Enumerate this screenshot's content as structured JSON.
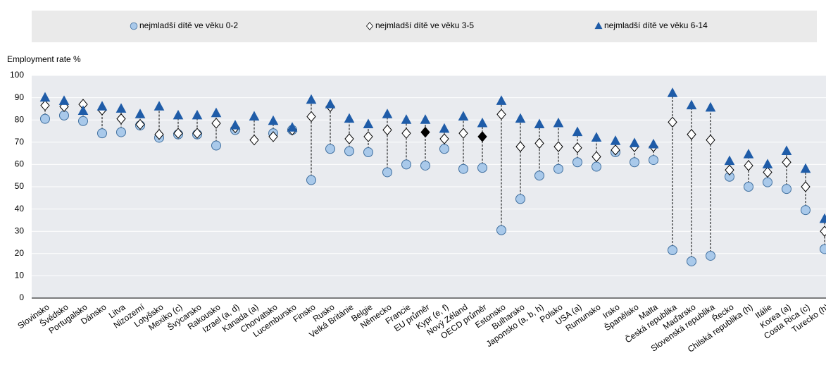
{
  "chart_data": {
    "type": "dot",
    "y_label": "Employment rate %",
    "categories": [
      "Slovinsko",
      "Švédsko",
      "Portugalsko",
      "Dánsko",
      "Litva",
      "Nizozemí",
      "Lotyšsko",
      "Mexiko (c)",
      "Švýcarsko",
      "Rakousko",
      "Izrael (a, d)",
      "Kanada (a)",
      "Chorvatsko",
      "Lucembursko",
      "Finsko",
      "Rusko",
      "Velká Británie",
      "Belgie",
      "Německo",
      "Francie",
      "EU průměr",
      "Kypr (e, f)",
      "Nový Zéland",
      "OECD průměr",
      "Estonsko",
      "Bulharsko",
      "Japonsko (a, b, h)",
      "Polsko",
      "USA (a)",
      "Rumunsko",
      "Irsko",
      "Španělsko",
      "Malta",
      "Česká republika",
      "Maďarsko",
      "Slovenská republika",
      "Řecko",
      "Chilská republika (h)",
      "Itálie",
      "Korea (a)",
      "Costa Rica (c)",
      "Turecko (h)"
    ],
    "series": [
      {
        "name": "nejmladší dítě ve věku 0-2",
        "marker": "circle",
        "color": "#a9c9ea",
        "stroke": "#3f6f9f",
        "values": [
          80.5,
          82,
          79.5,
          74,
          74.5,
          77.5,
          72,
          73.5,
          73.5,
          68.5,
          75.5,
          null,
          74,
          75.5,
          53,
          67,
          66,
          65.5,
          56.5,
          60,
          59.5,
          67,
          58,
          58.5,
          30.5,
          44.5,
          55,
          58,
          61,
          59,
          65.5,
          61,
          62,
          21.5,
          16.5,
          19,
          54.5,
          50,
          52,
          49,
          39.5,
          22
        ]
      },
      {
        "name": "nejmladší dítě ve věku 3-5",
        "marker": "diamond",
        "color": "#ffffff",
        "stroke": "#000000",
        "highlight_color": "#000000",
        "highlight_indices": [
          20,
          23
        ],
        "values": [
          86.5,
          86,
          87,
          84.5,
          80.5,
          78,
          73.5,
          74,
          74,
          78.5,
          76.5,
          71,
          72.5,
          75.5,
          81.5,
          86,
          71.5,
          72.5,
          75.5,
          74,
          74.5,
          71.5,
          74,
          72.5,
          82.5,
          68,
          69.5,
          68,
          67.5,
          63.5,
          66.5,
          68,
          68,
          79,
          73.5,
          71,
          57.5,
          59.5,
          56.5,
          61,
          50,
          30
        ]
      },
      {
        "name": "nejmladší dítě ve věku 6-14",
        "marker": "triangle",
        "color": "#1f5ca8",
        "stroke": "#1f5ca8",
        "values": [
          90,
          88.5,
          84,
          86,
          85,
          82.5,
          86,
          82,
          82,
          83,
          77.5,
          81.5,
          79.5,
          76.5,
          89,
          87,
          80.5,
          78,
          82.5,
          80,
          80,
          76,
          81.5,
          78.5,
          88.5,
          80.5,
          78,
          78.5,
          74.5,
          72,
          70.5,
          69.5,
          69,
          92,
          86.5,
          85.5,
          61.5,
          64.5,
          60,
          66,
          58,
          35.5
        ]
      }
    ],
    "ylim": [
      0,
      100
    ],
    "yticks": [
      0,
      10,
      20,
      30,
      40,
      50,
      60,
      70,
      80,
      90,
      100
    ],
    "grid": true,
    "connectors": "dashed",
    "legend": "top"
  }
}
